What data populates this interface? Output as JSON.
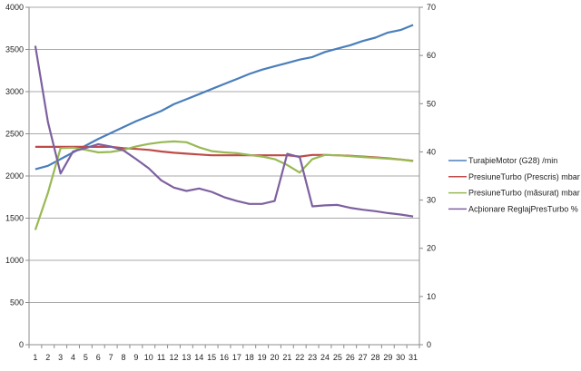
{
  "chart_data": {
    "type": "line",
    "title": "",
    "x": [
      1,
      2,
      3,
      4,
      5,
      6,
      7,
      8,
      9,
      10,
      11,
      12,
      13,
      14,
      15,
      16,
      17,
      18,
      19,
      20,
      21,
      22,
      23,
      24,
      25,
      26,
      27,
      28,
      29,
      30,
      31
    ],
    "ylim": [
      0,
      4000
    ],
    "y_ticks": [
      0,
      500,
      1000,
      1500,
      2000,
      2500,
      3000,
      3500,
      4000
    ],
    "y2lim": [
      0,
      70
    ],
    "y2_ticks": [
      0,
      10,
      20,
      30,
      40,
      50,
      60,
      70
    ],
    "grid": true,
    "legend_position": "right",
    "series": [
      {
        "name": "TuraþieMotor (G28)  /min",
        "axis": "left",
        "color": "#4a7ebb",
        "values": [
          2080,
          2120,
          2200,
          2280,
          2360,
          2440,
          2510,
          2580,
          2650,
          2710,
          2770,
          2850,
          2910,
          2970,
          3030,
          3090,
          3150,
          3210,
          3260,
          3300,
          3340,
          3380,
          3410,
          3470,
          3510,
          3550,
          3600,
          3640,
          3700,
          3730,
          3790
        ]
      },
      {
        "name": "PresiuneTurbo (Prescris)  mbar",
        "axis": "left",
        "color": "#be4b48",
        "values": [
          2345,
          2345,
          2345,
          2345,
          2345,
          2345,
          2345,
          2330,
          2320,
          2310,
          2290,
          2275,
          2265,
          2255,
          2245,
          2245,
          2245,
          2245,
          2245,
          2245,
          2245,
          2230,
          2250,
          2250,
          2245,
          2240,
          2230,
          2220,
          2210,
          2195,
          2180
        ]
      },
      {
        "name": "PresiuneTurbo (măsurat)  mbar",
        "axis": "left",
        "color": "#98b954",
        "values": [
          1360,
          1800,
          2330,
          2335,
          2310,
          2280,
          2285,
          2310,
          2350,
          2380,
          2400,
          2410,
          2400,
          2340,
          2295,
          2280,
          2270,
          2250,
          2230,
          2200,
          2130,
          2040,
          2200,
          2250,
          2245,
          2235,
          2225,
          2215,
          2205,
          2195,
          2175
        ]
      },
      {
        "name": "Acþionare ReglajPresTurbo  %",
        "axis": "right",
        "color": "#7d60a0",
        "values": [
          62.0,
          46.2,
          35.5,
          40.1,
          40.8,
          41.6,
          41.1,
          40.3,
          38.5,
          36.6,
          34.1,
          32.6,
          31.9,
          32.4,
          31.7,
          30.6,
          29.8,
          29.2,
          29.2,
          29.8,
          39.6,
          38.9,
          28.7,
          28.9,
          29.0,
          28.4,
          28.0,
          27.7,
          27.3,
          27.0,
          26.6
        ]
      }
    ]
  }
}
